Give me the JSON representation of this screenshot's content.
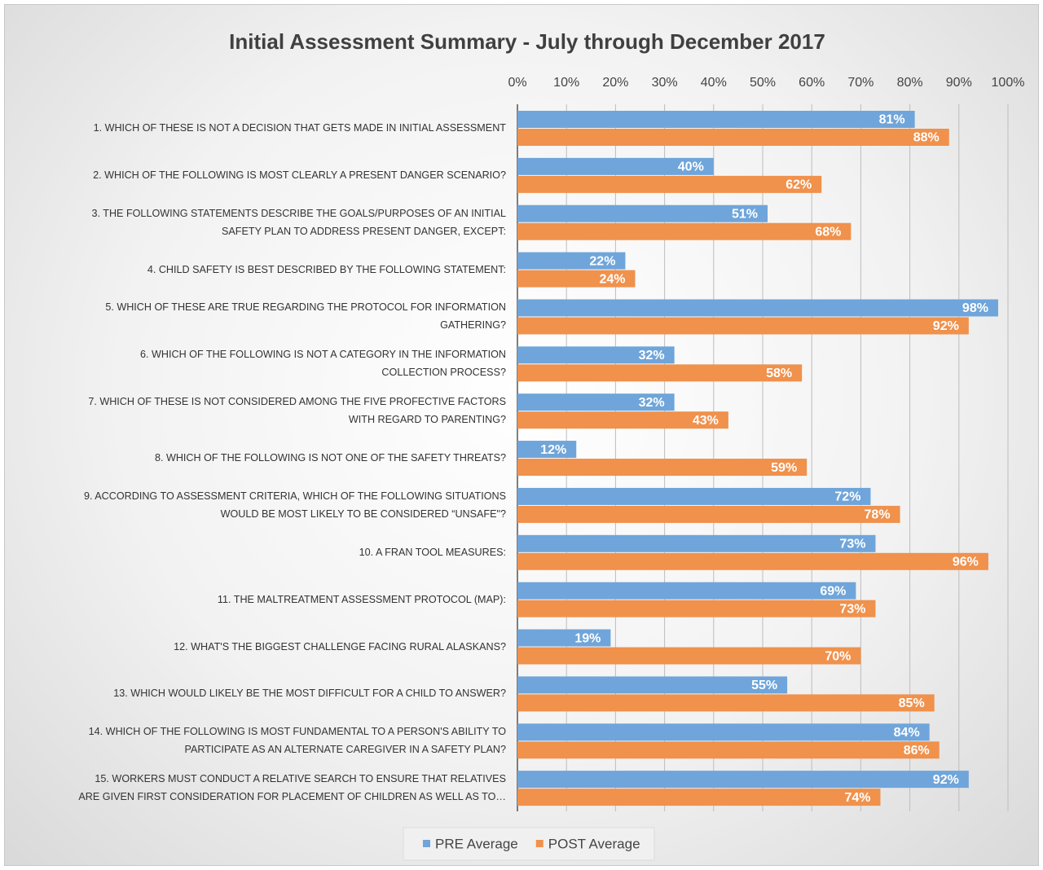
{
  "chart_data": {
    "type": "barh",
    "title": "Initial Assessment Summary - July through December 2017",
    "categories": [
      "1. WHICH OF THESE IS NOT A DECISION THAT GETS MADE IN INITIAL ASSESSMENT",
      "2. WHICH OF THE FOLLOWING IS MOST CLEARLY A PRESENT DANGER SCENARIO?",
      "3. THE FOLLOWING STATEMENTS DESCRIBE THE GOALS/PURPOSES OF AN INITIAL\nSAFETY PLAN TO ADDRESS PRESENT DANGER, EXCEPT:",
      "4. CHILD SAFETY IS BEST DESCRIBED BY THE FOLLOWING STATEMENT:",
      "5. WHICH OF THESE ARE TRUE REGARDING THE PROTOCOL FOR INFORMATION\nGATHERING?",
      "6. WHICH OF THE FOLLOWING IS NOT A CATEGORY IN THE INFORMATION\nCOLLECTION PROCESS?",
      "7. WHICH OF THESE IS NOT CONSIDERED AMONG THE FIVE PROFECTIVE FACTORS\nWITH REGARD TO PARENTING?",
      "8. WHICH OF THE FOLLOWING IS NOT ONE OF THE SAFETY THREATS?",
      "9.  ACCORDING TO ASSESSMENT CRITERIA, WHICH OF THE FOLLOWING SITUATIONS\nWOULD BE MOST LIKELY TO BE CONSIDERED “UNSAFE\"?",
      "10.  A FRAN TOOL MEASURES:",
      "11.  THE MALTREATMENT ASSESSMENT PROTOCOL (MAP):",
      "12. WHAT'S THE BIGGEST CHALLENGE FACING RURAL ALASKANS?",
      "13.  WHICH WOULD LIKELY BE THE MOST DIFFICULT FOR A CHILD TO ANSWER?",
      "14.  WHICH OF THE FOLLOWING IS MOST FUNDAMENTAL TO A PERSON'S ABILITY TO\nPARTICIPATE AS AN ALTERNATE CAREGIVER IN A SAFETY PLAN?",
      "15.  WORKERS MUST CONDUCT A RELATIVE SEARCH TO ENSURE THAT RELATIVES\nARE GIVEN FIRST CONSIDERATION FOR PLACEMENT OF CHILDREN AS WELL AS TO…"
    ],
    "series": [
      {
        "name": "PRE Average",
        "color": "#6fa5da",
        "values": [
          81,
          40,
          51,
          22,
          98,
          32,
          32,
          12,
          72,
          73,
          69,
          19,
          55,
          84,
          92
        ],
        "value_labels": [
          "81%",
          "40%",
          "51%",
          "22%",
          "98%",
          "32%",
          "32%",
          "12%",
          "72%",
          "73%",
          "69%",
          "19%",
          "55%",
          "84%",
          "92%"
        ]
      },
      {
        "name": "POST Average",
        "color": "#f0914c",
        "values": [
          88,
          62,
          68,
          24,
          92,
          58,
          43,
          59,
          78,
          96,
          73,
          70,
          85,
          86,
          74
        ],
        "value_labels": [
          "88%",
          "62%",
          "68%",
          "24%",
          "92%",
          "58%",
          "43%",
          "59%",
          "78%",
          "96%",
          "73%",
          "70%",
          "85%",
          "86%",
          "74%"
        ]
      }
    ],
    "xlim": [
      0,
      100
    ],
    "xticks": [
      {
        "value": 0,
        "label": "0%"
      },
      {
        "value": 10,
        "label": "10%"
      },
      {
        "value": 20,
        "label": "20%"
      },
      {
        "value": 30,
        "label": "30%"
      },
      {
        "value": 40,
        "label": "40%"
      },
      {
        "value": 50,
        "label": "50%"
      },
      {
        "value": 60,
        "label": "60%"
      },
      {
        "value": 70,
        "label": "70%"
      },
      {
        "value": 80,
        "label": "80%"
      },
      {
        "value": 90,
        "label": "90%"
      },
      {
        "value": 100,
        "label": "100%"
      }
    ],
    "grid": true,
    "legend": "bottom"
  }
}
